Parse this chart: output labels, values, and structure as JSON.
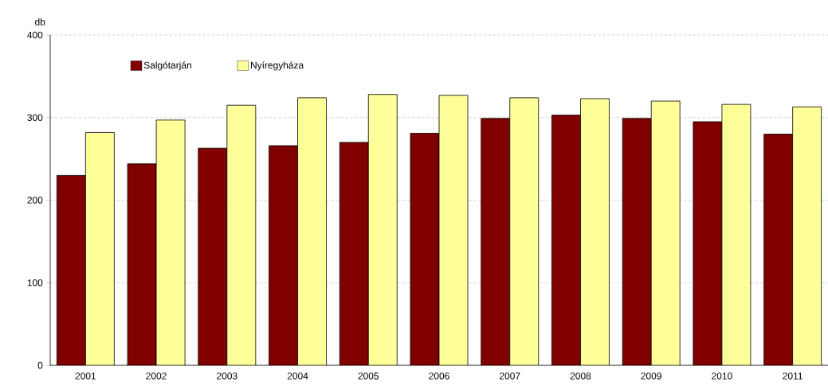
{
  "chart_data": {
    "type": "bar",
    "ylabel": "db",
    "categories": [
      "2001",
      "2002",
      "2003",
      "2004",
      "2005",
      "2006",
      "2007",
      "2008",
      "2009",
      "2010",
      "2011"
    ],
    "series": [
      {
        "name": "Salgótarján",
        "color": "#800000",
        "values": [
          230,
          244,
          263,
          266,
          270,
          281,
          299,
          303,
          299,
          295,
          280
        ]
      },
      {
        "name": "Nyíregyháza",
        "color": "#ffff99",
        "values": [
          282,
          297,
          315,
          324,
          328,
          327,
          324,
          323,
          320,
          316,
          313
        ]
      }
    ],
    "ylim": [
      0,
      400
    ],
    "yticks": [
      0,
      100,
      200,
      300,
      400
    ],
    "grid": "y",
    "legend": "top left"
  }
}
